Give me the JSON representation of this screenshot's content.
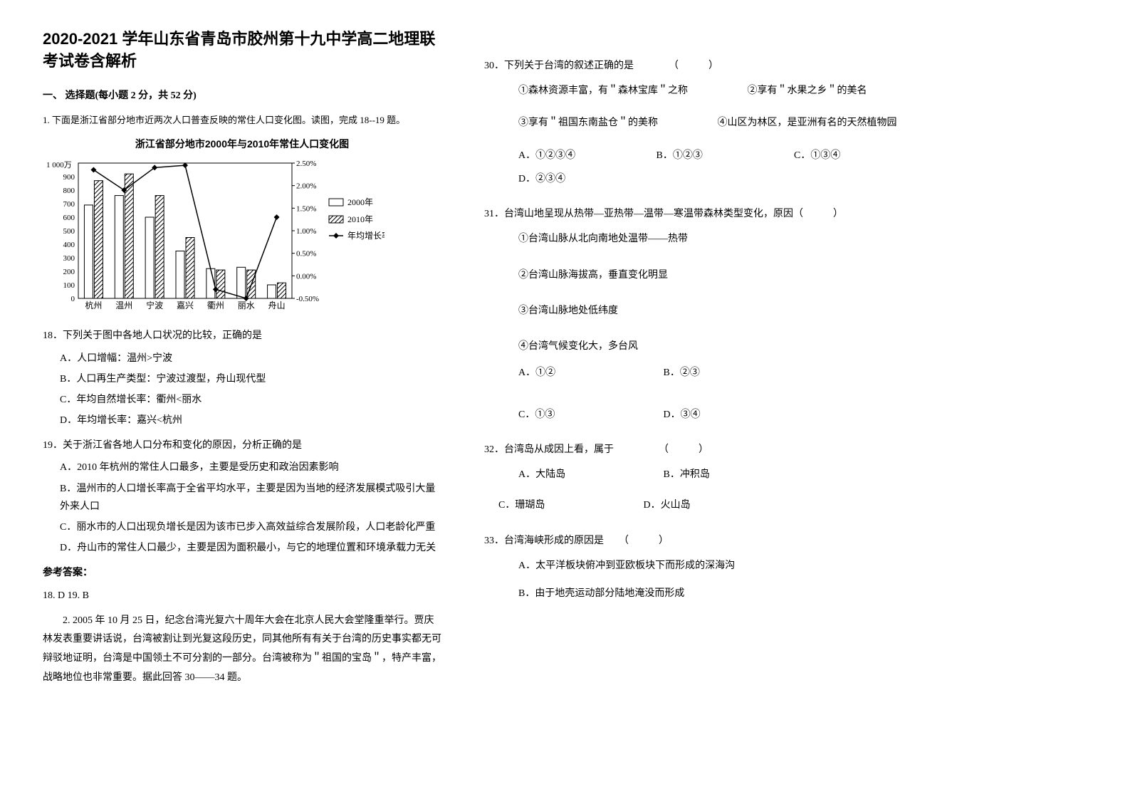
{
  "title": "2020-2021 学年山东省青岛市胶州第十九中学高二地理联考试卷含解析",
  "section1": "一、 选择题(每小题 2 分，共 52 分)",
  "q1_intro": "1. 下面是浙江省部分地市近两次人口普查反映的常住人口变化图。读图，完成 18--19 题。",
  "chart": {
    "type": "bar_line_combo",
    "title": "浙江省部分地市2000年与2010年常住人口变化图",
    "categories": [
      "杭州",
      "温州",
      "宁波",
      "嘉兴",
      "衢州",
      "丽水",
      "舟山"
    ],
    "y_left_label": "1 000万",
    "y_left_min": 0,
    "y_left_max": 1000,
    "y_left_ticks": [
      0,
      100,
      200,
      300,
      400,
      500,
      600,
      700,
      800,
      900
    ],
    "y_right_min": -0.5,
    "y_right_max": 2.5,
    "y_right_ticks": [
      "-0.50%",
      "0.00%",
      "0.50%",
      "1.00%",
      "1.50%",
      "2.00%",
      "2.50%"
    ],
    "series_2000": [
      690,
      760,
      600,
      350,
      220,
      230,
      100
    ],
    "series_2010": [
      870,
      920,
      760,
      450,
      210,
      210,
      115
    ],
    "growth_rate": [
      2.35,
      1.9,
      2.4,
      2.45,
      -0.3,
      -0.5,
      1.3
    ],
    "legend": [
      "2000年",
      "2010年",
      "年均增长率"
    ],
    "color_bar1": "#ffffff",
    "color_bar1_stroke": "#000000",
    "color_bar2_pattern": "diagonal",
    "color_line": "#000000",
    "background": "#ffffff",
    "axis_color": "#000000",
    "font_size_axis": 12,
    "font_size_title": 14
  },
  "q18": {
    "stem": "18．下列关于图中各地人口状况的比较，正确的是",
    "options": {
      "A": "A．人口增幅：温州>宁波",
      "B": "B．人口再生产类型：宁波过渡型，舟山现代型",
      "C": "C．年均自然增长率：衢州<丽水",
      "D": "D．年均增长率：嘉兴<杭州"
    }
  },
  "q19": {
    "stem": "19．关于浙江省各地人口分布和变化的原因，分析正确的是",
    "options": {
      "A": "A．2010 年杭州的常住人口最多，主要是受历史和政治因素影响",
      "B": "B．温州市的人口增长率高于全省平均水平，主要是因为当地的经济发展模式吸引大量外来人口",
      "C": "C．丽水市的人口出现负增长是因为该市已步入高效益综合发展阶段，人口老龄化严重",
      "D": "D．舟山市的常住人口最少，主要是因为面积最小，与它的地理位置和环境承载力无关"
    }
  },
  "answer_label": "参考答案：",
  "answer_1819": "18. D  19. B",
  "passage2": "2. 2005 年 10 月 25 日，纪念台湾光复六十周年大会在北京人民大会堂隆重举行。贾庆林发表重要讲话说，台湾被割让到光复这段历史，同其他所有有关于台湾的历史事实都无可辩驳地证明，台湾是中国领土不可分割的一部分。台湾被称为＂祖国的宝岛＂，特产丰富，战略地位也非常重要。据此回答 30——34 题。",
  "q30": {
    "stem": "30．下列关于台湾的叙述正确的是　　　　（　　　）",
    "subs": {
      "1": "①森林资源丰富，有＂森林宝库＂之称",
      "2": "②享有＂水果之乡＂的美名",
      "3": "③享有＂祖国东南盐仓＂的美称",
      "4": "④山区为林区，是亚洲有名的天然植物园"
    },
    "options": {
      "A": "A．①②③④",
      "B": "B．①②③",
      "C": "C．①③④",
      "D": "D．②③④"
    }
  },
  "q31": {
    "stem": "31．台湾山地呈现从热带—亚热带—温带—寒温带森林类型变化，原因（　　　）",
    "subs": {
      "1": "①台湾山脉从北向南地处温带——热带",
      "2": "②台湾山脉海拔高，垂直变化明显",
      "3": "③台湾山脉地处低纬度",
      "4": "④台湾气候变化大，多台风"
    },
    "options": {
      "A": "A．①②",
      "B": "B．②③",
      "C": "C．①③",
      "D": "D．③④"
    }
  },
  "q32": {
    "stem": "32．台湾岛从成因上看，属于　　　　　（　　　）",
    "options": {
      "A": "A．大陆岛",
      "B": "B．冲积岛",
      "C": "C．珊瑚岛",
      "D": "D．火山岛"
    }
  },
  "q33": {
    "stem": "33．台湾海峡形成的原因是　　（　　　）",
    "options": {
      "A": "A．太平洋板块俯冲到亚欧板块下而形成的深海沟",
      "B": "B．由于地壳运动部分陆地淹没而形成"
    }
  }
}
